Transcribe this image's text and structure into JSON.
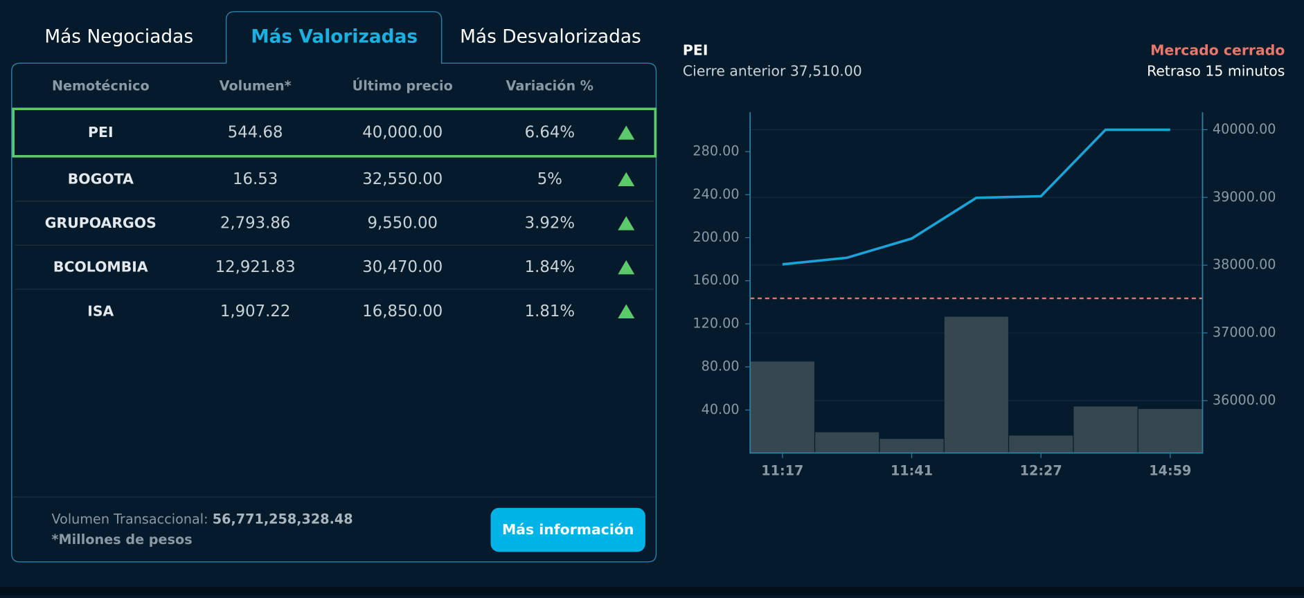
{
  "tabs": [
    "Más Negociadas",
    "Más Valorizadas",
    "Más Desvalorizadas"
  ],
  "table": {
    "headers": [
      "Nemotécnico",
      "Volumen*",
      "Último precio",
      "Variación %"
    ],
    "rows": [
      [
        "PEI",
        "544.68",
        "40,000.00",
        "6.64%"
      ],
      [
        "BOGOTA",
        "16.53",
        "32,550.00",
        "5%"
      ],
      [
        "GRUPOARGOS",
        "2,793.86",
        "9,550.00",
        "3.92%"
      ],
      [
        "BCOLOMBIA",
        "12,921.83",
        "30,470.00",
        "1.84%"
      ],
      [
        "ISA",
        "1,907.22",
        "16,850.00",
        "1.81%"
      ]
    ]
  },
  "footer": {
    "volume_label": "Volumen Transaccional:",
    "volume_value": "56,771,258,328.48",
    "note": "*Millones de pesos",
    "button": "Más información"
  },
  "status": {
    "market": "Mercado cerrado",
    "delay": "Retraso 15 minutos"
  },
  "chart_data": {
    "type": "combo",
    "title": "PEI",
    "subtitle": "Cierre anterior 37,510.00",
    "reference_line": 37510,
    "categories": [
      "11:17",
      null,
      "11:41",
      null,
      "12:27",
      null,
      "14:59"
    ],
    "series": [
      {
        "type": "bar",
        "color": "#37474f",
        "values": [
          85,
          19.3,
          13.1,
          126.6,
          16.2,
          43.2,
          40.9
        ]
      },
      {
        "type": "line",
        "color": "#1aa3d9",
        "axis": "y2",
        "values": [
          38012,
          38110,
          38393,
          38994,
          39018,
          40000,
          40000
        ]
      }
    ],
    "ylim": [
      0,
      316.6
    ],
    "yticks": [
      {
        "value": 40,
        "label": "40.00"
      },
      {
        "value": 80,
        "label": "80.00"
      },
      {
        "value": 120,
        "label": "120.00"
      },
      {
        "value": 160,
        "label": "160.00"
      },
      {
        "value": 200,
        "label": "200.00"
      },
      {
        "value": 240,
        "label": "240.00"
      },
      {
        "value": 280,
        "label": "280.00"
      }
    ],
    "y2lim": [
      35227,
      40258
    ],
    "y2ticks": [
      {
        "value": 36000,
        "label": "36000.00"
      },
      {
        "value": 37000,
        "label": "37000.00"
      },
      {
        "value": 38000,
        "label": "38000.00"
      },
      {
        "value": 39000,
        "label": "39000.00"
      },
      {
        "value": 40000,
        "label": "40000.00"
      }
    ]
  }
}
